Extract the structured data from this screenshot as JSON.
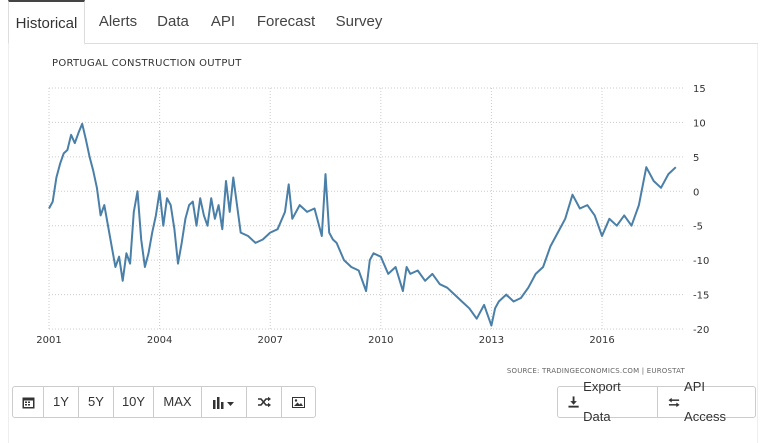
{
  "tabs": [
    {
      "label": "Historical"
    },
    {
      "label": "Alerts"
    },
    {
      "label": "Data"
    },
    {
      "label": "API"
    },
    {
      "label": "Forecast"
    },
    {
      "label": "Survey"
    }
  ],
  "active_tab": 0,
  "toolbar": {
    "calendar_icon": "calendar-icon",
    "range_1y": "1Y",
    "range_5y": "5Y",
    "range_10y": "10Y",
    "range_max": "MAX",
    "chart_type_icon": "bar-chart-icon",
    "shuffle_icon": "shuffle-icon",
    "image_icon": "image-icon",
    "export_label": "Export Data",
    "api_label": "API Access"
  },
  "chart_data": {
    "type": "line",
    "title": "PORTUGAL CONSTRUCTION OUTPUT",
    "source": "SOURCE: TRADINGECONOMICS.COM | EUROSTAT",
    "x_ticks": [
      "2001",
      "2004",
      "2007",
      "2010",
      "2013",
      "2016"
    ],
    "y_ticks": [
      "15",
      "10",
      "5",
      "0",
      "-5",
      "-10",
      "-15",
      "-20"
    ],
    "ylim": [
      -20,
      15
    ],
    "xlim": [
      2001.0,
      2018.25
    ],
    "grid": true,
    "line_color": "#4a7fa8",
    "series": [
      {
        "x": [
          2001.0,
          2001.1,
          2001.2,
          2001.3,
          2001.4,
          2001.5,
          2001.6,
          2001.7,
          2001.8,
          2001.9,
          2002.0,
          2002.1,
          2002.2,
          2002.3,
          2002.4,
          2002.5,
          2002.6,
          2002.7,
          2002.8,
          2002.9,
          2003.0,
          2003.1,
          2003.2,
          2003.3,
          2003.4,
          2003.5,
          2003.6,
          2003.7,
          2003.8,
          2003.9,
          2004.0,
          2004.1,
          2004.2,
          2004.3,
          2004.4,
          2004.5,
          2004.6,
          2004.7,
          2004.8,
          2004.9,
          2005.0,
          2005.1,
          2005.2,
          2005.3,
          2005.4,
          2005.5,
          2005.6,
          2005.7,
          2005.8,
          2005.9,
          2006.0,
          2006.2,
          2006.4,
          2006.6,
          2006.8,
          2007.0,
          2007.2,
          2007.4,
          2007.5,
          2007.6,
          2007.8,
          2008.0,
          2008.2,
          2008.4,
          2008.5,
          2008.6,
          2008.7,
          2008.8,
          2009.0,
          2009.2,
          2009.4,
          2009.6,
          2009.7,
          2009.8,
          2010.0,
          2010.2,
          2010.4,
          2010.6,
          2010.7,
          2010.8,
          2011.0,
          2011.2,
          2011.4,
          2011.6,
          2011.8,
          2012.0,
          2012.2,
          2012.4,
          2012.6,
          2012.8,
          2013.0,
          2013.1,
          2013.2,
          2013.4,
          2013.6,
          2013.8,
          2014.0,
          2014.2,
          2014.4,
          2014.6,
          2014.8,
          2015.0,
          2015.2,
          2015.4,
          2015.6,
          2015.8,
          2016.0,
          2016.2,
          2016.4,
          2016.6,
          2016.8,
          2017.0,
          2017.2,
          2017.4,
          2017.6,
          2017.8,
          2018.0
        ],
        "y": [
          -2.5,
          -1.5,
          2.0,
          4.0,
          5.5,
          6.0,
          8.2,
          7.0,
          8.5,
          9.8,
          7.5,
          5.0,
          3.0,
          0.5,
          -3.5,
          -2.0,
          -5.0,
          -8.0,
          -11.0,
          -9.5,
          -13.0,
          -9.0,
          -10.5,
          -3.0,
          0.0,
          -7.0,
          -11.0,
          -9.0,
          -6.0,
          -3.5,
          0.0,
          -5.0,
          -1.0,
          -2.0,
          -5.5,
          -10.5,
          -7.5,
          -4.0,
          -2.0,
          -1.5,
          -5.0,
          -1.0,
          -3.5,
          -5.0,
          -1.0,
          -4.0,
          -2.0,
          -5.5,
          1.5,
          -3.0,
          2.0,
          -6.0,
          -6.5,
          -7.5,
          -7.0,
          -6.0,
          -5.5,
          -3.0,
          1.0,
          -4.0,
          -2.0,
          -3.0,
          -2.5,
          -6.5,
          2.5,
          -6.0,
          -7.0,
          -7.5,
          -10.0,
          -11.0,
          -11.5,
          -14.5,
          -10.0,
          -9.0,
          -9.5,
          -12.0,
          -11.0,
          -14.5,
          -11.0,
          -12.0,
          -11.5,
          -13.0,
          -12.0,
          -13.5,
          -14.0,
          -15.0,
          -16.0,
          -17.0,
          -18.5,
          -16.5,
          -19.5,
          -17.0,
          -16.0,
          -15.0,
          -16.0,
          -15.5,
          -14.0,
          -12.0,
          -11.0,
          -8.0,
          -6.0,
          -4.0,
          -0.5,
          -2.5,
          -2.0,
          -3.5,
          -6.5,
          -4.0,
          -5.0,
          -3.5,
          -5.0,
          -2.0,
          3.5,
          1.5,
          0.5,
          2.5,
          3.5
        ]
      }
    ]
  }
}
